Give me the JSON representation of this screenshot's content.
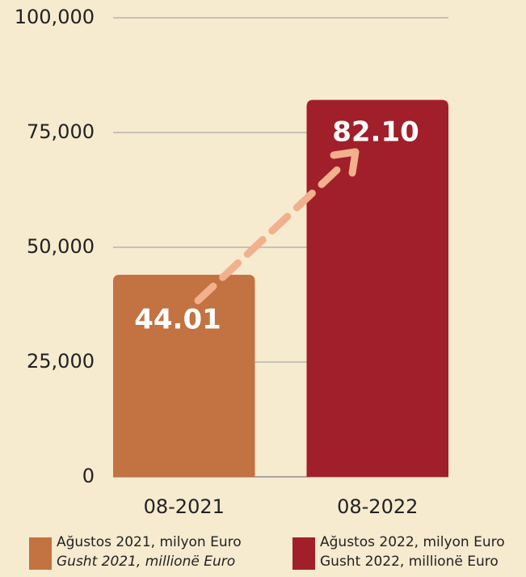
{
  "chart_data": {
    "type": "bar",
    "categories": [
      "08-2021",
      "08-2022"
    ],
    "values": [
      44010,
      82100
    ],
    "value_labels": [
      "44.01",
      "82.10"
    ],
    "colors": [
      "#c37242",
      "#a11f2a"
    ],
    "ylim": [
      0,
      100000
    ],
    "yticks": [
      {
        "value": 0,
        "label": "0"
      },
      {
        "value": 25000,
        "label": "25,000"
      },
      {
        "value": 50000,
        "label": "50,000"
      },
      {
        "value": 75000,
        "label": "75,000"
      },
      {
        "value": 100000,
        "label": "100,000"
      }
    ],
    "grid": true,
    "legend": [
      {
        "lines": [
          "Ağustos 2021, milyon Euro",
          "Gusht 2021, millionë Euro"
        ]
      },
      {
        "lines": [
          "Ağustos 2022, milyon Euro",
          "Gusht 2022, millionë Euro"
        ]
      }
    ]
  }
}
